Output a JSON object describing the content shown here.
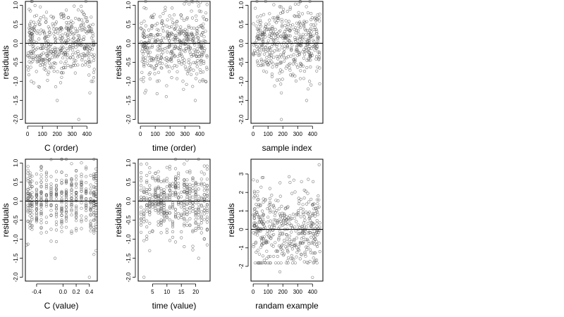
{
  "chart_data": [
    {
      "type": "scatter",
      "xlabel": "C (order)",
      "ylabel": "residuals",
      "xticks": [
        0,
        100,
        200,
        300,
        400
      ],
      "xtick_labels": [
        "0",
        "100",
        "200",
        "300",
        "400"
      ],
      "xlim": [
        -15,
        470
      ],
      "yticks": [
        -2.0,
        -1.5,
        -1.0,
        -0.5,
        0.0,
        0.5,
        1.0
      ],
      "ytick_labels": [
        "-2.0",
        "-1.5",
        "-1.0",
        "-0.5",
        "0.0",
        "0.5",
        "1.0"
      ],
      "ylim": [
        -2.1,
        1.1
      ],
      "hline": 0,
      "points": {
        "generator": "uniform-normal",
        "n": 450,
        "seed": 11,
        "x_range": [
          0,
          450
        ],
        "sd": 0.45,
        "y_range": [
          -2.0,
          1.1
        ],
        "extra": [
          [
            200,
            -1.5
          ],
          [
            345,
            -2.0
          ],
          [
            420,
            -1.3
          ],
          [
            430,
            -1.0
          ],
          [
            440,
            -1.0
          ],
          [
            80,
            -1.15
          ],
          [
            25,
            -1.0
          ]
        ]
      }
    },
    {
      "type": "scatter",
      "xlabel": "time (order)",
      "ylabel": "residuals",
      "xticks": [
        0,
        100,
        200,
        300,
        400
      ],
      "xtick_labels": [
        "0",
        "100",
        "200",
        "300",
        "400"
      ],
      "xlim": [
        -15,
        470
      ],
      "yticks": [
        -2.0,
        -1.5,
        -1.0,
        -0.5,
        0.0,
        0.5,
        1.0
      ],
      "ytick_labels": [
        "-2.0",
        "-1.5",
        "-1.0",
        "-0.5",
        "0.0",
        "0.5",
        "1.0"
      ],
      "ylim": [
        -2.1,
        1.1
      ],
      "hline": 0,
      "points": {
        "generator": "uniform-normal",
        "n": 450,
        "seed": 23,
        "x_range": [
          0,
          450
        ],
        "sd": 0.45,
        "y_range": [
          -2.0,
          1.1
        ],
        "extra": [
          [
            30,
            -1.3
          ],
          [
            20,
            -1.0
          ],
          [
            370,
            -1.5
          ],
          [
            400,
            -1.0
          ],
          [
            440,
            -1.0
          ]
        ]
      }
    },
    {
      "type": "scatter",
      "xlabel": "sample index",
      "ylabel": "residuals",
      "xticks": [
        0,
        100,
        200,
        300,
        400
      ],
      "xtick_labels": [
        "0",
        "100",
        "200",
        "300",
        "400"
      ],
      "xlim": [
        -15,
        470
      ],
      "yticks": [
        -2.0,
        -1.5,
        -1.0,
        -0.5,
        0.0,
        0.5,
        1.0
      ],
      "ytick_labels": [
        "-2.0",
        "-1.5",
        "-1.0",
        "-0.5",
        "0.0",
        "0.5",
        "1.0"
      ],
      "ylim": [
        -2.1,
        1.1
      ],
      "hline": 0,
      "points": {
        "generator": "uniform-normal",
        "n": 450,
        "seed": 37,
        "x_range": [
          0,
          450
        ],
        "sd": 0.45,
        "y_range": [
          -2.0,
          1.1
        ],
        "extra": [
          [
            190,
            -2.0
          ],
          [
            190,
            -1.3
          ],
          [
            360,
            -1.5
          ],
          [
            370,
            -1.2
          ],
          [
            380,
            -1.0
          ]
        ]
      }
    },
    {
      "type": "scatter",
      "xlabel": "C (value)",
      "ylabel": "residuals",
      "xticks": [
        -0.4,
        0.0,
        0.2,
        0.4
      ],
      "xtick_labels": [
        "-0.4",
        "0.0",
        "0.2",
        "0.4"
      ],
      "xlim": [
        -0.57,
        0.52
      ],
      "yticks": [
        -2.0,
        -1.5,
        -1.0,
        -0.5,
        0.0,
        0.5,
        1.0
      ],
      "ytick_labels": [
        "-2.0",
        "-1.5",
        "-1.0",
        "-0.5",
        "0.0",
        "0.5",
        "1.0"
      ],
      "ylim": [
        -2.1,
        1.1
      ],
      "hline": 0,
      "points": {
        "generator": "columns-normal",
        "n": 450,
        "seed": 41,
        "x_values": [
          -0.53,
          -0.5,
          -0.47,
          -0.4,
          -0.33,
          -0.25,
          -0.18,
          -0.1,
          -0.02,
          0.05,
          0.13,
          0.2,
          0.28,
          0.35,
          0.42,
          0.47,
          0.5
        ],
        "sd": 0.45,
        "y_range": [
          -2.0,
          1.1
        ],
        "extra": [
          [
            -0.12,
            -1.5
          ],
          [
            0.4,
            -2.0
          ],
          [
            0.5,
            -1.3
          ],
          [
            -0.55,
            -1.15
          ]
        ]
      }
    },
    {
      "type": "scatter",
      "xlabel": "time (value)",
      "ylabel": "residuals",
      "xticks": [
        5,
        10,
        15,
        20
      ],
      "xtick_labels": [
        "5",
        "10",
        "15",
        "20"
      ],
      "xlim": [
        0,
        25
      ],
      "yticks": [
        -2.0,
        -1.5,
        -1.0,
        -0.5,
        0.0,
        0.5,
        1.0
      ],
      "ytick_labels": [
        "-2.0",
        "-1.5",
        "-1.0",
        "-0.5",
        "0.0",
        "0.5",
        "1.0"
      ],
      "ylim": [
        -2.1,
        1.1
      ],
      "hline": 0,
      "points": {
        "generator": "columns-normal",
        "n": 450,
        "seed": 53,
        "x_values": [
          1,
          2,
          3,
          4,
          5,
          6,
          7,
          8,
          9,
          10,
          11,
          12,
          13,
          14,
          15,
          16,
          17,
          18,
          19,
          20,
          21,
          22,
          23,
          24
        ],
        "sd": 0.45,
        "y_range": [
          -2.0,
          1.1
        ],
        "extra": [
          [
            2,
            -2.0
          ],
          [
            3,
            -1.0
          ],
          [
            4,
            -1.3
          ],
          [
            21,
            -1.5
          ],
          [
            23,
            -1.0
          ]
        ]
      }
    },
    {
      "type": "scatter",
      "xlabel": "randam example",
      "ylabel": "residuals",
      "xticks": [
        0,
        100,
        200,
        300,
        400
      ],
      "xtick_labels": [
        "0",
        "100",
        "200",
        "300",
        "400"
      ],
      "xlim": [
        -15,
        470
      ],
      "yticks": [
        -2,
        -1,
        0,
        1,
        2,
        3
      ],
      "ytick_labels": [
        "-2",
        "-1",
        "0",
        "1",
        "2",
        "3"
      ],
      "ylim": [
        -2.8,
        3.8
      ],
      "hline": 0,
      "points": {
        "generator": "uniform-normal",
        "n": 450,
        "seed": 67,
        "x_range": [
          0,
          450
        ],
        "sd": 1.0,
        "y_range": [
          -2.6,
          3.5
        ],
        "extra": [
          [
            445,
            3.5
          ],
          [
            400,
            -2.6
          ],
          [
            60,
            2.8
          ],
          [
            180,
            -2.3
          ]
        ]
      }
    }
  ]
}
